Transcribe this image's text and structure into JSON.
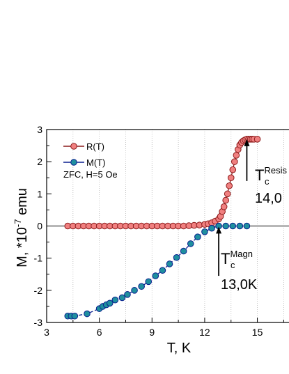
{
  "chart_data": {
    "type": "scatter",
    "xlabel": "T, K",
    "ylabel_main": "M, *10",
    "ylabel_exp": "-7",
    "ylabel_unit": " emu",
    "xlim": [
      3,
      17
    ],
    "ylim": [
      -3,
      3
    ],
    "xticks": [
      3,
      6,
      9,
      12,
      15
    ],
    "yticks": [
      -3,
      -2,
      -1,
      0,
      1,
      2,
      3
    ],
    "grid": "vertical dotted",
    "legend_position": "top-left",
    "annotation_text": "ZFC, H=5 Oe",
    "series": [
      {
        "name": "R(T)",
        "color": "#8b1a1a",
        "marker_fill": "#f08080",
        "x": [
          4.2,
          4.5,
          4.8,
          5.1,
          5.4,
          5.7,
          6.0,
          6.3,
          6.6,
          6.9,
          7.2,
          7.5,
          7.8,
          8.1,
          8.4,
          8.7,
          9.0,
          9.3,
          9.6,
          9.9,
          10.2,
          10.5,
          10.8,
          11.1,
          11.4,
          11.7,
          12.0,
          12.2,
          12.4,
          12.6,
          12.8,
          12.9,
          13.0,
          13.1,
          13.2,
          13.3,
          13.4,
          13.5,
          13.6,
          13.7,
          13.8,
          13.9,
          14.0,
          14.1,
          14.2,
          14.3,
          14.4,
          14.5,
          14.6,
          14.7,
          14.8,
          15.0
        ],
        "y": [
          0,
          0,
          0,
          0,
          0,
          0,
          0,
          0,
          0,
          0,
          0,
          0,
          0,
          0,
          0,
          0,
          0,
          0,
          0,
          0,
          0,
          0,
          0,
          0.01,
          0.02,
          0.03,
          0.05,
          0.07,
          0.1,
          0.15,
          0.22,
          0.3,
          0.45,
          0.6,
          0.8,
          1.0,
          1.25,
          1.5,
          1.75,
          2.0,
          2.2,
          2.38,
          2.52,
          2.6,
          2.65,
          2.68,
          2.7,
          2.7,
          2.7,
          2.7,
          2.7,
          2.7
        ]
      },
      {
        "name": "M(T)",
        "color": "#0a1f8f",
        "marker_fill": "#1f8f9f",
        "x": [
          4.2,
          4.4,
          4.6,
          5.3,
          6.0,
          6.2,
          6.4,
          6.6,
          6.9,
          7.3,
          7.6,
          8.0,
          8.4,
          8.8,
          9.2,
          9.6,
          10.0,
          10.4,
          10.8,
          11.2,
          11.6,
          12.0,
          12.4,
          12.8,
          13.2,
          13.6,
          14.0,
          14.4
        ],
        "y": [
          -2.8,
          -2.8,
          -2.8,
          -2.73,
          -2.57,
          -2.5,
          -2.45,
          -2.4,
          -2.3,
          -2.23,
          -2.13,
          -2.0,
          -1.88,
          -1.73,
          -1.55,
          -1.38,
          -1.18,
          -0.98,
          -0.78,
          -0.55,
          -0.34,
          -0.18,
          -0.07,
          0.0,
          0.0,
          0.0,
          0.0,
          0.0
        ]
      }
    ],
    "annotations": [
      {
        "id": "resis",
        "base": "T",
        "sub": "c",
        "sup": "Resis",
        "value": "14,0",
        "arrow_x": 14.4,
        "arrow_from_y": 1.4,
        "arrow_to_y": 2.7
      },
      {
        "id": "magn",
        "base": "T",
        "sub": "c",
        "sup": "Magn",
        "value": "13,0K",
        "arrow_x": 12.8,
        "arrow_from_y": -1.55,
        "arrow_to_y": -0.02
      }
    ]
  }
}
